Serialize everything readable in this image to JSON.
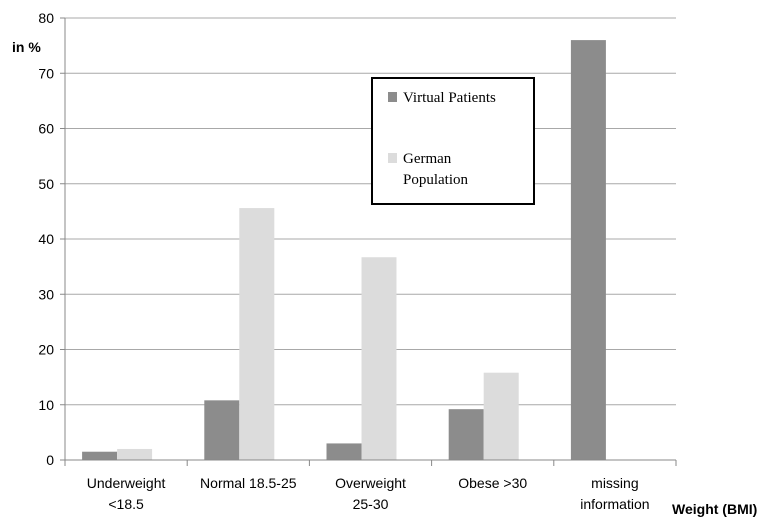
{
  "chart_data": {
    "type": "bar",
    "title": "",
    "ylabel": "in %",
    "xlabel": "Weight (BMI)",
    "ylim": [
      0,
      80
    ],
    "yticks": [
      0,
      10,
      20,
      30,
      40,
      50,
      60,
      70,
      80
    ],
    "grid": true,
    "legend_position": "top-right",
    "categories": [
      [
        "Underweight",
        "<18.5"
      ],
      [
        "Normal 18.5-25"
      ],
      [
        "Overweight",
        "25-30"
      ],
      [
        "Obese >30"
      ],
      [
        "missing",
        "information"
      ]
    ],
    "series": [
      {
        "name": "Virtual Patients",
        "legend_lines": [
          "Virtual Patients"
        ],
        "color": "#8c8c8c",
        "values": [
          1.5,
          10.8,
          3.0,
          9.2,
          76.0
        ]
      },
      {
        "name": "German Population",
        "legend_lines": [
          "German",
          "Population"
        ],
        "color": "#dcdcdc",
        "values": [
          2.0,
          45.6,
          36.7,
          15.8,
          0
        ]
      }
    ]
  }
}
